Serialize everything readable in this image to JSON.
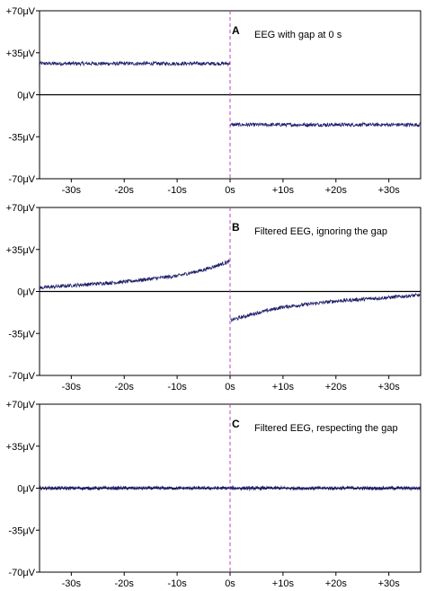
{
  "chart_data": [
    {
      "type": "line",
      "panel_label": "A",
      "annotation": "EEG with gap at 0 s",
      "xlim": [
        -36,
        36
      ],
      "ylim": [
        -70,
        70
      ],
      "x_ticks": [
        -30,
        -20,
        -10,
        0,
        10,
        20,
        30
      ],
      "x_tick_labels": [
        "-30s",
        "-20s",
        "-10s",
        "0s",
        "+10s",
        "+20s",
        "+30s"
      ],
      "y_ticks": [
        70,
        35,
        0,
        -35,
        -70
      ],
      "y_tick_labels": [
        "+70μV",
        "+35μV",
        "0μV",
        "-35μV",
        "-70μV"
      ],
      "zero_line": true,
      "gap_marker_x": 0,
      "series": [
        {
          "x": [
            -36,
            -30,
            -20,
            -10,
            -0.1
          ],
          "y": [
            26,
            26,
            26,
            26,
            26
          ],
          "noise": 1.5
        },
        {
          "x": [
            0.1,
            10,
            20,
            30,
            36
          ],
          "y": [
            -25,
            -25,
            -25,
            -25,
            -25
          ],
          "noise": 1.5
        }
      ]
    },
    {
      "type": "line",
      "panel_label": "B",
      "annotation": "Filtered EEG, ignoring the gap",
      "xlim": [
        -36,
        36
      ],
      "ylim": [
        -70,
        70
      ],
      "x_ticks": [
        -30,
        -20,
        -10,
        0,
        10,
        20,
        30
      ],
      "x_tick_labels": [
        "-30s",
        "-20s",
        "-10s",
        "0s",
        "+10s",
        "+20s",
        "+30s"
      ],
      "y_ticks": [
        70,
        35,
        0,
        -35,
        -70
      ],
      "y_tick_labels": [
        "+70μV",
        "+35μV",
        "0μV",
        "-35μV",
        "-70μV"
      ],
      "zero_line": true,
      "gap_marker_x": 0,
      "series": [
        {
          "x": [
            -36,
            -30,
            -20,
            -10,
            -5,
            -0.1
          ],
          "y": [
            3,
            5,
            8,
            13,
            18,
            25
          ],
          "noise": 1.5
        },
        {
          "x": [
            0.1,
            5,
            10,
            20,
            30,
            36
          ],
          "y": [
            -24,
            -18,
            -13,
            -8,
            -5,
            -3
          ],
          "noise": 1.5
        }
      ]
    },
    {
      "type": "line",
      "panel_label": "C",
      "annotation": "Filtered EEG, respecting the gap",
      "xlim": [
        -36,
        36
      ],
      "ylim": [
        -70,
        70
      ],
      "x_ticks": [
        -30,
        -20,
        -10,
        0,
        10,
        20,
        30
      ],
      "x_tick_labels": [
        "-30s",
        "-20s",
        "-10s",
        "0s",
        "+10s",
        "+20s",
        "+30s"
      ],
      "y_ticks": [
        70,
        35,
        0,
        -35,
        -70
      ],
      "y_tick_labels": [
        "+70μV",
        "+35μV",
        "0μV",
        "-35μV",
        "-70μV"
      ],
      "zero_line": true,
      "gap_marker_x": 0,
      "series": [
        {
          "x": [
            -36,
            -30,
            -20,
            -10,
            -0.1
          ],
          "y": [
            0,
            0,
            0,
            0,
            0
          ],
          "noise": 1.5
        },
        {
          "x": [
            0.1,
            10,
            20,
            30,
            36
          ],
          "y": [
            0,
            0,
            0,
            0,
            0
          ],
          "noise": 1.5
        }
      ]
    }
  ],
  "colors": {
    "trace": "#1f1f6b",
    "gap_marker": "#c040c0",
    "axis": "#000000"
  }
}
